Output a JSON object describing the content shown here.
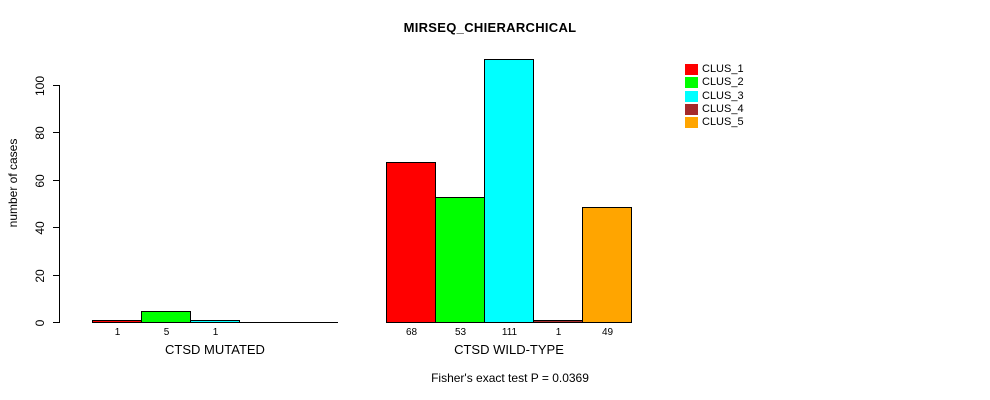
{
  "title": "MIRSEQ_CHIERARCHICAL",
  "caption": "Fisher's exact test P = 0.0369",
  "chart_data": {
    "type": "bar",
    "title": "MIRSEQ_CHIERARCHICAL",
    "xlabel": "",
    "ylabel": "number of cases",
    "yticks": [
      0,
      20,
      40,
      60,
      80,
      100
    ],
    "ylim": [
      0,
      115
    ],
    "grid": false,
    "legend_position": "top-right",
    "categories": [
      "CTSD MUTATED",
      "CTSD WILD-TYPE"
    ],
    "series": [
      {
        "name": "CLUS_1",
        "color": "#FF0000",
        "values": [
          1,
          68
        ]
      },
      {
        "name": "CLUS_2",
        "color": "#00FF00",
        "values": [
          5,
          53
        ]
      },
      {
        "name": "CLUS_3",
        "color": "#00FFFF",
        "values": [
          1,
          111
        ]
      },
      {
        "name": "CLUS_4",
        "color": "#A52A2A",
        "values": [
          0,
          1
        ]
      },
      {
        "name": "CLUS_5",
        "color": "#FFA500",
        "values": [
          0,
          49
        ]
      }
    ],
    "bar_value_labels": [
      [
        "1",
        "5",
        "1",
        "",
        ""
      ],
      [
        "68",
        "53",
        "111",
        "1",
        "49"
      ]
    ],
    "annotation": "Fisher's exact test P = 0.0369"
  }
}
